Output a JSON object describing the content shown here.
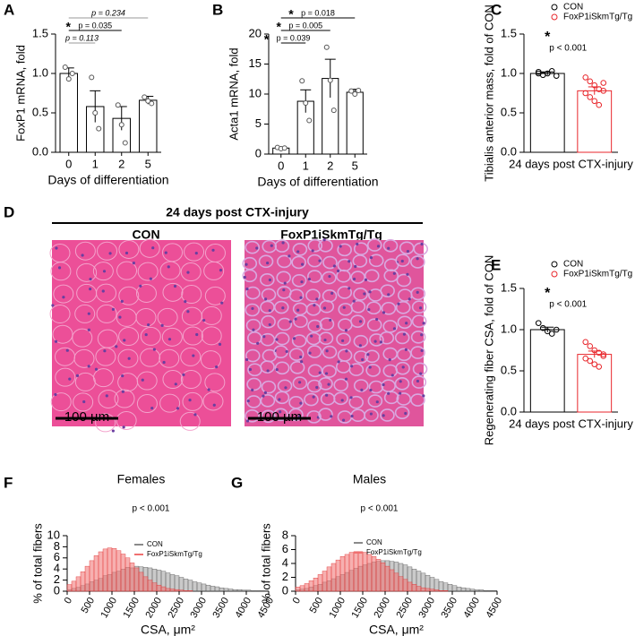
{
  "chart_data": [
    {
      "type": "bar",
      "panel": "A",
      "ylabel": "FoxP1 mRNA, fold",
      "xlabel": "Days of differentiation",
      "categories": [
        "0",
        "1",
        "2",
        "5"
      ],
      "values": [
        1.0,
        0.58,
        0.43,
        0.66
      ],
      "errors": [
        0.07,
        0.2,
        0.15,
        0.05
      ],
      "points": [
        [
          1.08,
          0.93,
          1.0
        ],
        [
          0.95,
          0.5,
          0.3
        ],
        [
          0.6,
          0.35,
          0.12
        ],
        [
          0.7,
          0.65,
          0.62
        ]
      ],
      "ylim": [
        0,
        1.5
      ],
      "yticks": [
        {
          "value": 0,
          "label": "0.0"
        },
        0.5,
        {
          "value": 1,
          "label": "1.0"
        },
        1.5
      ],
      "comparisons": [
        {
          "from": 0,
          "to": 3,
          "label": "p = 0.234",
          "color": "#999999"
        },
        {
          "from": 0,
          "to": 2,
          "label": "p = 0.035",
          "marker": "*",
          "color": "#000000"
        },
        {
          "from": 0,
          "to": 1,
          "label": "p = 0.113",
          "color": "#999999"
        }
      ]
    },
    {
      "type": "bar",
      "panel": "B",
      "ylabel": "Acta1 mRNA, fold",
      "xlabel": "Days of differentiation",
      "categories": [
        "0",
        "1",
        "2",
        "5"
      ],
      "values": [
        1.0,
        8.8,
        12.6,
        10.3
      ],
      "errors": [
        0.2,
        1.9,
        3.2,
        0.5
      ],
      "points": [
        [
          1.1,
          0.9,
          1.0
        ],
        [
          12.2,
          8.5,
          5.6
        ],
        [
          17.8,
          12.3,
          7.3
        ],
        [
          10.5,
          10.0,
          10.6
        ]
      ],
      "ylim": [
        0,
        20
      ],
      "yticks": [
        0,
        5,
        10,
        15,
        20
      ],
      "comparisons": [
        {
          "from": 0,
          "to": 3,
          "label": "p = 0.018",
          "marker": "*",
          "color": "#000000"
        },
        {
          "from": 0,
          "to": 2,
          "label": "p = 0.005",
          "marker": "*",
          "color": "#000000"
        },
        {
          "from": 0,
          "to": 1,
          "label": "p = 0.039",
          "marker": "*",
          "color": "#000000"
        }
      ]
    },
    {
      "type": "groupbar",
      "panel": "C",
      "ylabel": "Tibialis anterior mass, fold of CON",
      "xlabel": "24 days post CTX-injury",
      "series": [
        {
          "name": "CON",
          "color": "#000000",
          "values": [
            1.0
          ],
          "errors": [
            0.02
          ],
          "points": [
            [
              1.02,
              0.98,
              1.0,
              1.03,
              0.97,
              1.0
            ]
          ]
        },
        {
          "name": "FoxP1iSkmTg/Tg",
          "color": "#e8262b",
          "values": [
            0.78
          ],
          "errors": [
            0.05
          ],
          "points": [
            [
              0.95,
              0.9,
              0.85,
              0.8,
              0.78,
              0.75,
              0.7,
              0.65,
              0.6,
              0.88
            ]
          ]
        }
      ],
      "ylim": [
        0,
        1.5
      ],
      "yticks": [
        {
          "value": 0,
          "label": "0.0"
        },
        0.5,
        {
          "value": 1,
          "label": "1.0"
        },
        1.5
      ],
      "annotation": {
        "marker": "*",
        "label": "p < 0.001"
      }
    },
    {
      "type": "groupbar",
      "panel": "E",
      "ylabel": "Regenerating fiber CSA, fold of CON",
      "xlabel": "24 days post CTX-injury",
      "series": [
        {
          "name": "CON",
          "color": "#000000",
          "values": [
            1.0
          ],
          "errors": [
            0.03
          ],
          "points": [
            [
              1.08,
              1.02,
              0.98,
              0.95,
              1.0
            ]
          ]
        },
        {
          "name": "FoxP1iSkmTg/Tg",
          "color": "#e8262b",
          "values": [
            0.7
          ],
          "errors": [
            0.04
          ],
          "points": [
            [
              0.85,
              0.8,
              0.75,
              0.72,
              0.7,
              0.65,
              0.62,
              0.58,
              0.55,
              0.68
            ]
          ]
        }
      ],
      "ylim": [
        0,
        1.5
      ],
      "yticks": [
        {
          "value": 0,
          "label": "0.0"
        },
        0.5,
        {
          "value": 1,
          "label": "1.0"
        },
        1.5
      ],
      "annotation": {
        "marker": "*",
        "label": "p < 0.001"
      }
    },
    {
      "type": "histogram",
      "panel": "F",
      "title": "Females",
      "annotation": "p < 0.001",
      "ylabel": "% of total fibers",
      "xlabel": "CSA, μm²",
      "bins": [
        0,
        100,
        200,
        300,
        400,
        500,
        600,
        700,
        800,
        900,
        1000,
        1100,
        1200,
        1300,
        1400,
        1500,
        1600,
        1700,
        1800,
        1900,
        2000,
        2100,
        2200,
        2300,
        2400,
        2500,
        2600,
        2700,
        2800,
        2900,
        3000,
        3100,
        3200,
        3300,
        3400,
        3500,
        3600,
        3700,
        3800,
        3900,
        4000,
        4100,
        4200,
        4300,
        4400,
        4500
      ],
      "series": [
        {
          "name": "CON",
          "color": "#8a8a8a",
          "values": [
            0.3,
            0.5,
            0.7,
            1.0,
            1.3,
            1.7,
            2.0,
            2.3,
            2.8,
            3.0,
            3.4,
            3.6,
            4.0,
            4.3,
            4.2,
            4.5,
            4.4,
            4.3,
            4.2,
            4.0,
            3.8,
            3.6,
            3.3,
            3.0,
            2.8,
            2.5,
            2.2,
            2.0,
            1.7,
            1.5,
            1.3,
            1.1,
            0.9,
            0.8,
            0.6,
            0.5,
            0.4,
            0.3,
            0.3,
            0.2,
            0.2,
            0.1,
            0.1,
            0.1,
            0.1
          ]
        },
        {
          "name": "FoxP1iSkmTg/Tg",
          "color": "#f07070",
          "values": [
            1.2,
            1.8,
            2.6,
            3.5,
            4.5,
            5.5,
            6.4,
            7.1,
            7.6,
            7.8,
            7.7,
            7.3,
            6.7,
            6.0,
            5.1,
            4.2,
            3.4,
            2.6,
            2.0,
            1.5,
            1.1,
            0.8,
            0.5,
            0.4,
            0.3,
            0.2,
            0.1,
            0.1,
            0,
            0,
            0,
            0,
            0,
            0,
            0,
            0,
            0,
            0,
            0,
            0,
            0,
            0,
            0,
            0,
            0
          ]
        }
      ],
      "xlim": [
        0,
        4500
      ],
      "xticks": [
        0,
        500,
        1000,
        1500,
        2000,
        2500,
        3000,
        3500,
        4000,
        4500
      ],
      "ylim": [
        0,
        10
      ],
      "yticks": [
        0,
        2,
        4,
        6,
        8,
        10
      ]
    },
    {
      "type": "histogram",
      "panel": "G",
      "title": "Males",
      "annotation": "p < 0.001",
      "ylabel": "% of total fibers",
      "xlabel": "CSA, μm²",
      "bins": [
        0,
        100,
        200,
        300,
        400,
        500,
        600,
        700,
        800,
        900,
        1000,
        1100,
        1200,
        1300,
        1400,
        1500,
        1600,
        1700,
        1800,
        1900,
        2000,
        2100,
        2200,
        2300,
        2400,
        2500,
        2600,
        2700,
        2800,
        2900,
        3000,
        3100,
        3200,
        3300,
        3400,
        3500,
        3600,
        3700,
        3800,
        3900,
        4000,
        4100,
        4200,
        4300,
        4400,
        4500
      ],
      "series": [
        {
          "name": "CON",
          "color": "#8a8a8a",
          "values": [
            0.2,
            0.3,
            0.4,
            0.6,
            0.8,
            1.0,
            1.3,
            1.5,
            1.8,
            2.1,
            2.4,
            2.7,
            3.0,
            3.3,
            3.6,
            3.8,
            4.0,
            4.2,
            4.3,
            4.4,
            4.4,
            4.3,
            4.2,
            4.0,
            3.8,
            3.5,
            3.2,
            2.9,
            2.6,
            2.3,
            2.0,
            1.7,
            1.4,
            1.2,
            1.0,
            0.8,
            0.6,
            0.5,
            0.4,
            0.3,
            0.2,
            0.2,
            0.1,
            0.1,
            0.1
          ]
        },
        {
          "name": "FoxP1iSkmTg/Tg",
          "color": "#f07070",
          "values": [
            0.6,
            0.8,
            1.1,
            1.5,
            1.9,
            2.4,
            2.9,
            3.5,
            4.0,
            4.5,
            5.0,
            5.3,
            5.6,
            5.7,
            5.7,
            5.6,
            5.3,
            5.0,
            4.6,
            4.1,
            3.6,
            3.1,
            2.6,
            2.1,
            1.7,
            1.3,
            1.0,
            0.7,
            0.5,
            0.4,
            0.3,
            0.2,
            0.1,
            0.1,
            0,
            0,
            0,
            0,
            0,
            0,
            0,
            0,
            0,
            0,
            0
          ]
        }
      ],
      "xlim": [
        0,
        4500
      ],
      "xticks": [
        0,
        500,
        1000,
        1500,
        2000,
        2500,
        3000,
        3500,
        4000,
        4500
      ],
      "ylim": [
        0,
        8
      ],
      "yticks": [
        0,
        2,
        4,
        6,
        8
      ]
    }
  ],
  "histology": {
    "panel": "D",
    "title": "24 days post CTX-injury",
    "images": [
      {
        "label": "CON",
        "scale_bar": "100 µm"
      },
      {
        "label": "FoxP1iSkmTg/Tg",
        "scale_bar": "100 µm"
      }
    ]
  }
}
